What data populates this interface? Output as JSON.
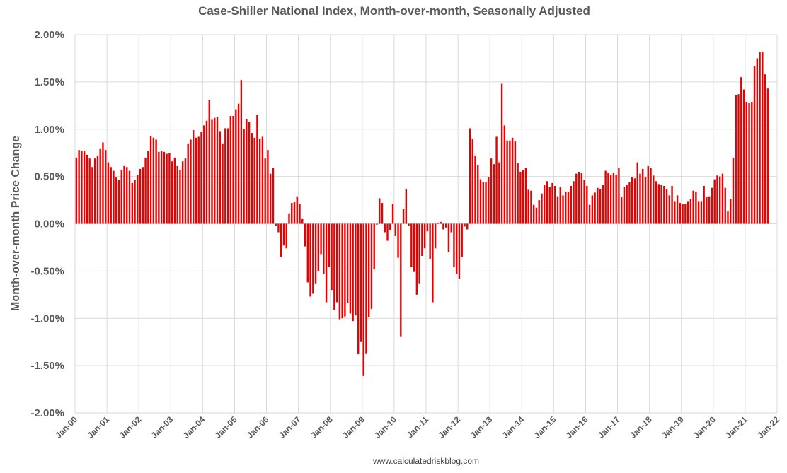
{
  "chart_data": {
    "type": "bar",
    "title": "Case-Shiller National Index, Month-over-month, Seasonally Adjusted",
    "xlabel": "",
    "ylabel": "Month-over-month Price Change",
    "source": "www.calculatedriskblog.com",
    "ylim": [
      -2.0,
      2.0
    ],
    "y_ticks": [
      2.0,
      1.5,
      1.0,
      0.5,
      0.0,
      -0.5,
      -1.0,
      -1.5,
      -2.0
    ],
    "y_tick_labels": [
      "2.00%",
      "1.50%",
      "1.00%",
      "0.50%",
      "0.00%",
      "-0.50%",
      "-1.00%",
      "-1.50%",
      "-2.00%"
    ],
    "x_tick_labels": [
      "Jan-00",
      "Jan-01",
      "Jan-02",
      "Jan-03",
      "Jan-04",
      "Jan-05",
      "Jan-06",
      "Jan-07",
      "Jan-08",
      "Jan-09",
      "Jan-10",
      "Jan-11",
      "Jan-12",
      "Jan-13",
      "Jan-14",
      "Jan-15",
      "Jan-16",
      "Jan-17",
      "Jan-18",
      "Jan-19",
      "Jan-20",
      "Jan-21",
      "Jan-22"
    ],
    "start_month": "Jan-00",
    "months_total": 264,
    "series": [
      {
        "name": "Month-over-month Price Change (%)",
        "color": "#e60000",
        "values": [
          0.7,
          0.78,
          0.77,
          0.77,
          0.73,
          0.69,
          0.6,
          0.69,
          0.72,
          0.79,
          0.86,
          0.78,
          0.65,
          0.6,
          0.56,
          0.49,
          0.46,
          0.57,
          0.61,
          0.6,
          0.56,
          0.43,
          0.46,
          0.52,
          0.58,
          0.6,
          0.7,
          0.77,
          0.93,
          0.91,
          0.89,
          0.76,
          0.77,
          0.76,
          0.74,
          0.75,
          0.66,
          0.7,
          0.61,
          0.57,
          0.66,
          0.69,
          0.85,
          0.89,
          0.99,
          0.91,
          0.92,
          0.97,
          1.04,
          1.09,
          1.31,
          1.1,
          1.12,
          1.13,
          0.98,
          0.85,
          1.01,
          1.01,
          1.14,
          1.14,
          1.21,
          1.27,
          1.52,
          1.0,
          1.11,
          1.08,
          0.96,
          0.91,
          1.15,
          0.9,
          0.92,
          0.69,
          0.78,
          0.53,
          0.59,
          -0.02,
          -0.09,
          -0.35,
          -0.23,
          -0.26,
          0.11,
          0.22,
          0.23,
          0.29,
          0.21,
          0.05,
          -0.24,
          -0.62,
          -0.77,
          -0.74,
          -0.63,
          -0.5,
          -0.32,
          -0.53,
          -0.83,
          -0.46,
          -0.7,
          -0.91,
          -0.83,
          -1.01,
          -1.0,
          -0.98,
          -0.84,
          -0.95,
          -1.03,
          -0.97,
          -1.38,
          -1.25,
          -1.61,
          -1.37,
          -0.99,
          -0.9,
          -0.48,
          -0.01,
          0.27,
          0.22,
          -0.09,
          -0.18,
          -0.07,
          0.21,
          -0.13,
          -0.36,
          -1.19,
          0.16,
          0.37,
          -0.02,
          -0.46,
          -0.51,
          -0.75,
          -0.63,
          -0.34,
          -0.26,
          -0.08,
          -0.37,
          -0.83,
          -0.26,
          0.01,
          0.02,
          -0.06,
          -0.04,
          -0.3,
          -0.09,
          -0.46,
          -0.53,
          -0.58,
          -0.35,
          -0.03,
          -0.06,
          1.01,
          0.9,
          0.72,
          0.62,
          0.47,
          0.44,
          0.44,
          0.49,
          0.69,
          0.63,
          0.92,
          0.65,
          1.48,
          1.04,
          0.88,
          0.88,
          0.91,
          0.87,
          0.64,
          0.55,
          0.57,
          0.59,
          0.36,
          0.35,
          0.2,
          0.17,
          0.25,
          0.32,
          0.41,
          0.45,
          0.39,
          0.43,
          0.4,
          0.29,
          0.39,
          0.3,
          0.34,
          0.34,
          0.4,
          0.45,
          0.53,
          0.55,
          0.54,
          0.46,
          0.4,
          0.2,
          0.3,
          0.33,
          0.38,
          0.37,
          0.41,
          0.56,
          0.54,
          0.52,
          0.54,
          0.52,
          0.59,
          0.28,
          0.39,
          0.41,
          0.44,
          0.49,
          0.48,
          0.65,
          0.53,
          0.58,
          0.49,
          0.61,
          0.59,
          0.51,
          0.45,
          0.42,
          0.41,
          0.4,
          0.37,
          0.3,
          0.4,
          0.24,
          0.3,
          0.22,
          0.21,
          0.21,
          0.24,
          0.26,
          0.35,
          0.34,
          0.24,
          0.24,
          0.4,
          0.28,
          0.29,
          0.38,
          0.47,
          0.51,
          0.5,
          0.53,
          0.38,
          0.13,
          0.26,
          0.7,
          1.36,
          1.37,
          1.55,
          1.42,
          1.29,
          1.28,
          1.29,
          1.67,
          1.75,
          1.82,
          1.82,
          1.58,
          1.43
        ]
      }
    ]
  }
}
